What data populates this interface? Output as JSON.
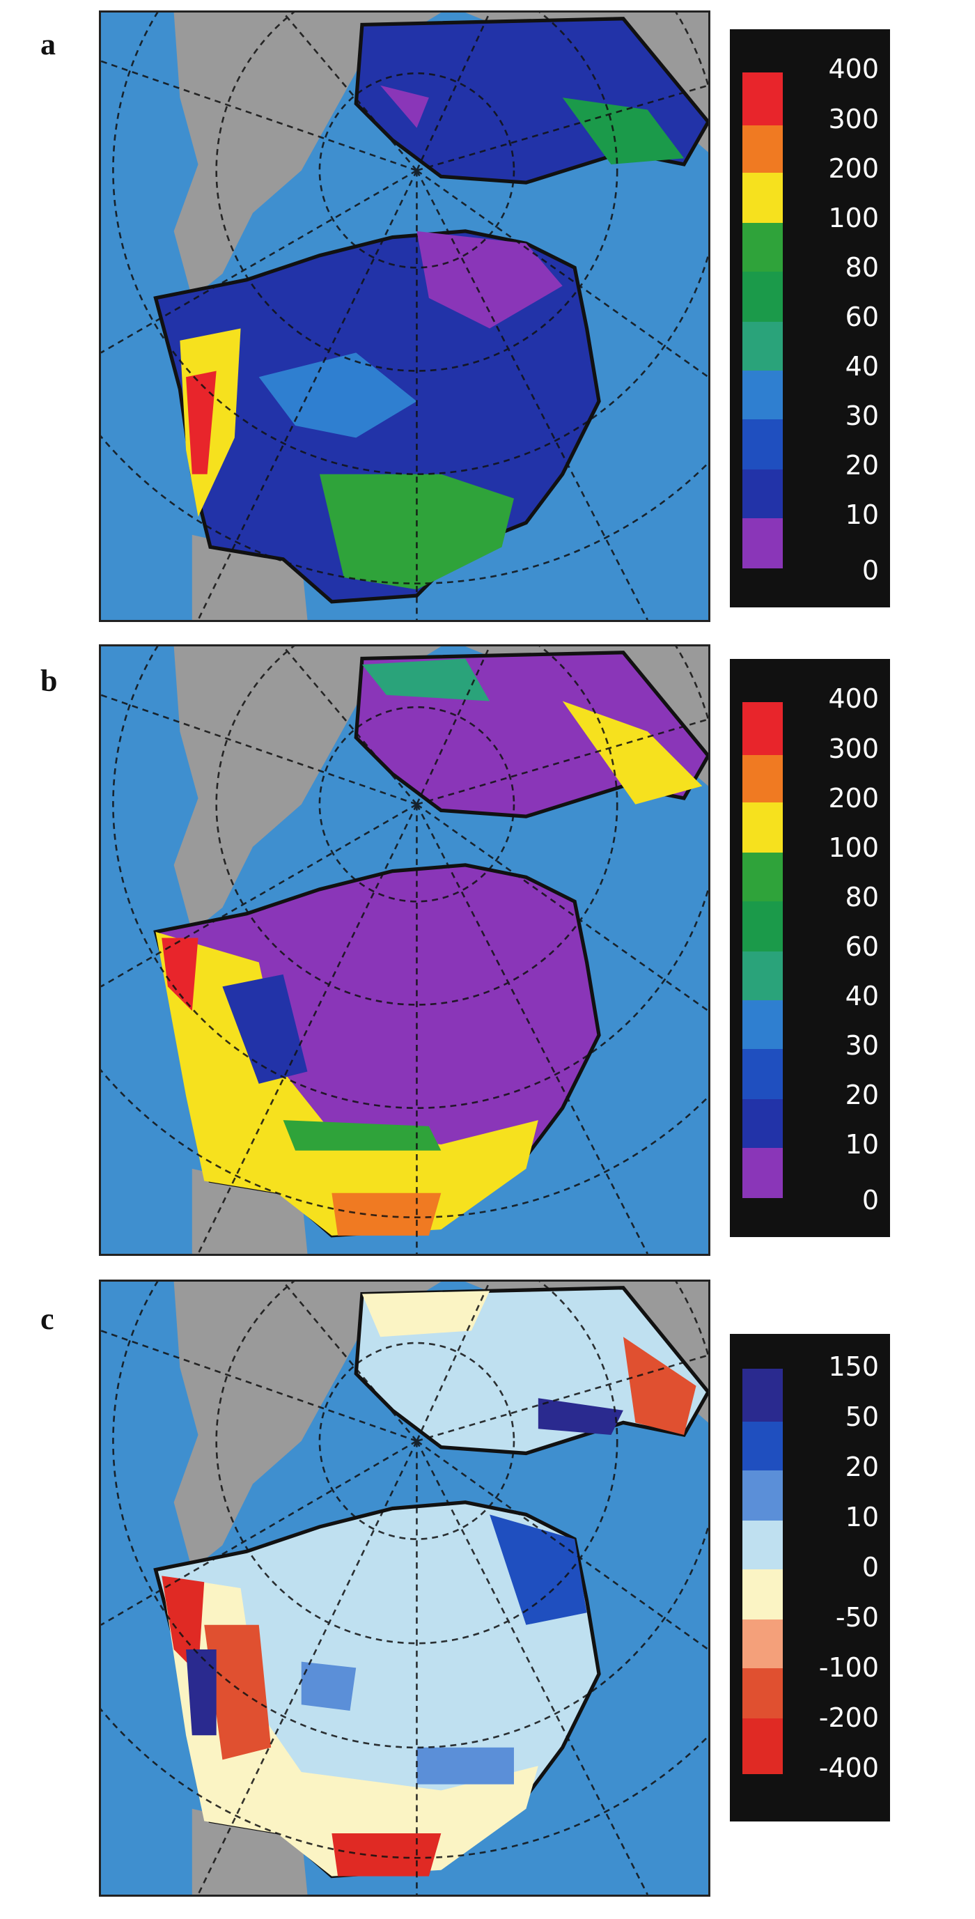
{
  "panels": [
    {
      "label": "a",
      "legend": {
        "ticks": [
          "400",
          "300",
          "200",
          "100",
          "80",
          "60",
          "40",
          "30",
          "20",
          "10",
          "0"
        ],
        "colors": [
          "#e8252b",
          "#f07a22",
          "#f6e11e",
          "#2fa33a",
          "#1b9a4a",
          "#2aa37a",
          "#2f7fd0",
          "#1f4fbf",
          "#2233a8",
          "#8a36b8"
        ]
      }
    },
    {
      "label": "b",
      "legend": {
        "ticks": [
          "400",
          "300",
          "200",
          "100",
          "80",
          "60",
          "40",
          "30",
          "20",
          "10",
          "0"
        ],
        "colors": [
          "#e8252b",
          "#f07a22",
          "#f6e11e",
          "#2fa33a",
          "#1b9a4a",
          "#2aa37a",
          "#2f7fd0",
          "#1f4fbf",
          "#2233a8",
          "#8a36b8"
        ]
      }
    },
    {
      "label": "c",
      "legend": {
        "ticks": [
          "150",
          "50",
          "20",
          "10",
          "0",
          "-50",
          "-100",
          "-200",
          "-400"
        ],
        "colors": [
          "#2a2a8f",
          "#1f4fbf",
          "#5b8fd8",
          "#bfe0f0",
          "#fbf4c4",
          "#f4a07a",
          "#e05030",
          "#e02a24"
        ]
      }
    }
  ],
  "colors": {
    "ocean": "#3f8fcf",
    "land": "#9a9a9a",
    "frame": "#222222"
  }
}
